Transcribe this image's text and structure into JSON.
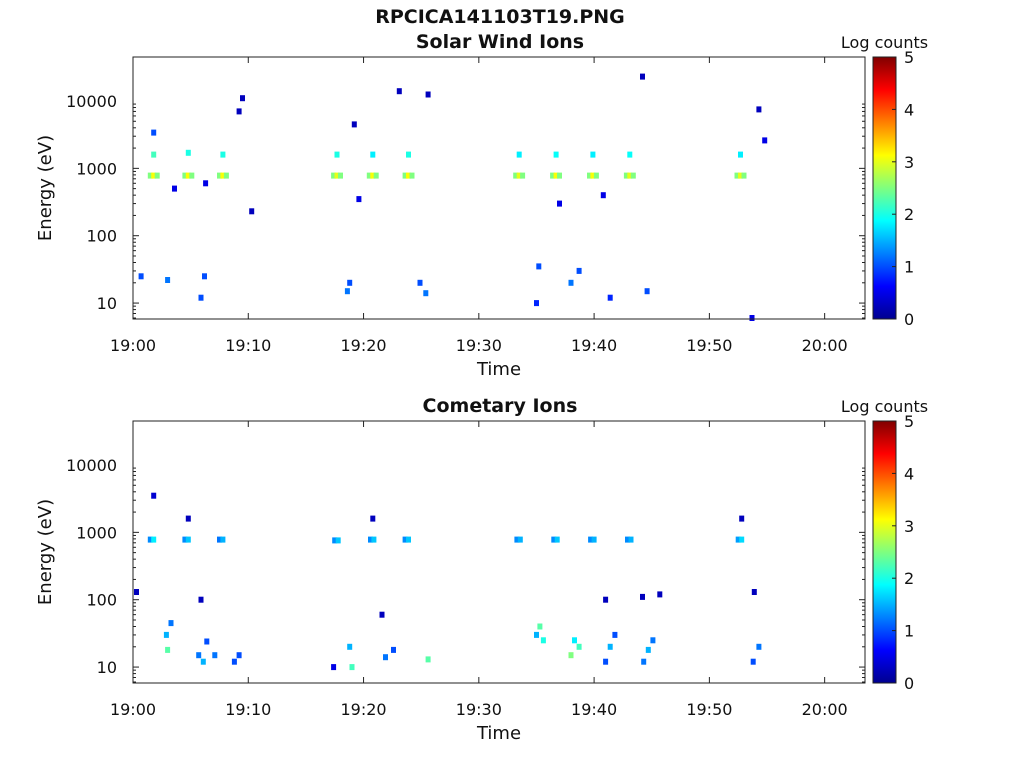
{
  "figure_title": "RPCICA141103T19.PNG",
  "chart_data": [
    {
      "type": "heatmap",
      "title": "Solar Wind Ions",
      "xlabel": "Time",
      "ylabel": "Energy (eV)",
      "x_ticks": [
        "19:00",
        "19:10",
        "19:20",
        "19:30",
        "19:40",
        "19:50",
        "20:00"
      ],
      "x_range_minutes": [
        0,
        63.5
      ],
      "y_ticks": [
        "10",
        "100",
        "1000",
        "10000"
      ],
      "y_scale": "log",
      "y_range_eV": [
        5.8,
        45000
      ],
      "colorbar": {
        "label": "Log counts",
        "ticks": [
          "0",
          "1",
          "2",
          "3",
          "4",
          "5"
        ],
        "range": [
          0,
          5
        ],
        "colormap": "jet"
      },
      "points": [
        {
          "t": 1.5,
          "e": 780,
          "v": 2.5
        },
        {
          "t": 1.8,
          "e": 780,
          "v": 3.1
        },
        {
          "t": 2.1,
          "e": 780,
          "v": 2.5
        },
        {
          "t": 4.5,
          "e": 780,
          "v": 2.5
        },
        {
          "t": 4.8,
          "e": 780,
          "v": 3.1
        },
        {
          "t": 5.1,
          "e": 780,
          "v": 2.5
        },
        {
          "t": 7.5,
          "e": 780,
          "v": 2.5
        },
        {
          "t": 7.8,
          "e": 780,
          "v": 3.1
        },
        {
          "t": 8.1,
          "e": 780,
          "v": 2.5
        },
        {
          "t": 17.4,
          "e": 780,
          "v": 2.5
        },
        {
          "t": 17.7,
          "e": 780,
          "v": 3.0
        },
        {
          "t": 18.0,
          "e": 780,
          "v": 2.5
        },
        {
          "t": 20.5,
          "e": 780,
          "v": 2.5
        },
        {
          "t": 20.8,
          "e": 780,
          "v": 3.1
        },
        {
          "t": 21.1,
          "e": 780,
          "v": 2.5
        },
        {
          "t": 23.6,
          "e": 780,
          "v": 2.5
        },
        {
          "t": 23.9,
          "e": 780,
          "v": 3.1
        },
        {
          "t": 24.2,
          "e": 780,
          "v": 2.5
        },
        {
          "t": 33.2,
          "e": 780,
          "v": 2.5
        },
        {
          "t": 33.5,
          "e": 780,
          "v": 3.0
        },
        {
          "t": 33.8,
          "e": 780,
          "v": 2.5
        },
        {
          "t": 36.4,
          "e": 780,
          "v": 2.5
        },
        {
          "t": 36.7,
          "e": 780,
          "v": 3.1
        },
        {
          "t": 37.0,
          "e": 780,
          "v": 2.5
        },
        {
          "t": 39.6,
          "e": 780,
          "v": 2.5
        },
        {
          "t": 39.9,
          "e": 780,
          "v": 3.1
        },
        {
          "t": 40.2,
          "e": 780,
          "v": 2.5
        },
        {
          "t": 42.8,
          "e": 780,
          "v": 2.5
        },
        {
          "t": 43.1,
          "e": 780,
          "v": 3.0
        },
        {
          "t": 43.4,
          "e": 780,
          "v": 2.5
        },
        {
          "t": 52.4,
          "e": 780,
          "v": 2.5
        },
        {
          "t": 52.7,
          "e": 780,
          "v": 3.0
        },
        {
          "t": 53.0,
          "e": 780,
          "v": 2.5
        },
        {
          "t": 1.8,
          "e": 1600,
          "v": 2.2
        },
        {
          "t": 4.8,
          "e": 1700,
          "v": 2.0
        },
        {
          "t": 7.8,
          "e": 1600,
          "v": 2.0
        },
        {
          "t": 17.7,
          "e": 1600,
          "v": 2.0
        },
        {
          "t": 20.8,
          "e": 1600,
          "v": 1.8
        },
        {
          "t": 23.9,
          "e": 1600,
          "v": 2.0
        },
        {
          "t": 33.5,
          "e": 1600,
          "v": 1.8
        },
        {
          "t": 36.7,
          "e": 1600,
          "v": 1.9
        },
        {
          "t": 39.9,
          "e": 1600,
          "v": 1.8
        },
        {
          "t": 43.1,
          "e": 1600,
          "v": 1.9
        },
        {
          "t": 52.7,
          "e": 1600,
          "v": 1.8
        },
        {
          "t": 1.8,
          "e": 3400,
          "v": 1.0
        },
        {
          "t": 3.6,
          "e": 500,
          "v": 0.5
        },
        {
          "t": 6.3,
          "e": 600,
          "v": 0.5
        },
        {
          "t": 9.2,
          "e": 7000,
          "v": 0.3
        },
        {
          "t": 9.5,
          "e": 11000,
          "v": 0.3
        },
        {
          "t": 10.3,
          "e": 230,
          "v": 0.3
        },
        {
          "t": 19.2,
          "e": 4500,
          "v": 0.3
        },
        {
          "t": 19.6,
          "e": 350,
          "v": 0.5
        },
        {
          "t": 23.1,
          "e": 14000,
          "v": 0.3
        },
        {
          "t": 25.6,
          "e": 12500,
          "v": 0.3
        },
        {
          "t": 37.0,
          "e": 300,
          "v": 0.5
        },
        {
          "t": 40.8,
          "e": 400,
          "v": 0.5
        },
        {
          "t": 44.2,
          "e": 23000,
          "v": 0.3
        },
        {
          "t": 54.3,
          "e": 7500,
          "v": 0.3
        },
        {
          "t": 54.8,
          "e": 2600,
          "v": 0.5
        },
        {
          "t": 0.7,
          "e": 25,
          "v": 1.0
        },
        {
          "t": 3.0,
          "e": 22,
          "v": 1.2
        },
        {
          "t": 6.2,
          "e": 25,
          "v": 1.0
        },
        {
          "t": 5.9,
          "e": 12,
          "v": 1.0
        },
        {
          "t": 18.8,
          "e": 20,
          "v": 1.0
        },
        {
          "t": 18.6,
          "e": 15,
          "v": 1.2
        },
        {
          "t": 24.9,
          "e": 20,
          "v": 1.0
        },
        {
          "t": 25.4,
          "e": 14,
          "v": 1.2
        },
        {
          "t": 35.2,
          "e": 35,
          "v": 1.0
        },
        {
          "t": 35.0,
          "e": 10,
          "v": 0.8
        },
        {
          "t": 38.0,
          "e": 20,
          "v": 1.2
        },
        {
          "t": 38.7,
          "e": 30,
          "v": 1.0
        },
        {
          "t": 41.4,
          "e": 12,
          "v": 0.8
        },
        {
          "t": 44.6,
          "e": 15,
          "v": 1.0
        },
        {
          "t": 53.7,
          "e": 6,
          "v": 0.5
        }
      ]
    },
    {
      "type": "heatmap",
      "title": "Cometary Ions",
      "xlabel": "Time",
      "ylabel": "Energy (eV)",
      "x_ticks": [
        "19:00",
        "19:10",
        "19:20",
        "19:30",
        "19:40",
        "19:50",
        "20:00"
      ],
      "x_range_minutes": [
        0,
        63.5
      ],
      "y_ticks": [
        "10",
        "100",
        "1000",
        "10000"
      ],
      "y_scale": "log",
      "y_range_eV": [
        5.8,
        45000
      ],
      "colorbar": {
        "label": "Log counts",
        "ticks": [
          "0",
          "1",
          "2",
          "3",
          "4",
          "5"
        ],
        "range": [
          0,
          5
        ],
        "colormap": "jet"
      },
      "points": [
        {
          "t": 1.5,
          "e": 780,
          "v": 1.3
        },
        {
          "t": 1.8,
          "e": 780,
          "v": 1.8
        },
        {
          "t": 4.5,
          "e": 780,
          "v": 1.3
        },
        {
          "t": 4.8,
          "e": 780,
          "v": 1.6
        },
        {
          "t": 7.5,
          "e": 780,
          "v": 1.2
        },
        {
          "t": 7.8,
          "e": 780,
          "v": 1.5
        },
        {
          "t": 17.5,
          "e": 760,
          "v": 1.3
        },
        {
          "t": 17.8,
          "e": 760,
          "v": 1.6
        },
        {
          "t": 20.6,
          "e": 780,
          "v": 1.3
        },
        {
          "t": 20.9,
          "e": 780,
          "v": 1.6
        },
        {
          "t": 23.6,
          "e": 780,
          "v": 1.3
        },
        {
          "t": 23.9,
          "e": 780,
          "v": 1.6
        },
        {
          "t": 33.3,
          "e": 780,
          "v": 1.3
        },
        {
          "t": 33.6,
          "e": 780,
          "v": 1.5
        },
        {
          "t": 36.5,
          "e": 780,
          "v": 1.3
        },
        {
          "t": 36.8,
          "e": 780,
          "v": 1.6
        },
        {
          "t": 39.7,
          "e": 780,
          "v": 1.3
        },
        {
          "t": 40.0,
          "e": 780,
          "v": 1.5
        },
        {
          "t": 42.9,
          "e": 780,
          "v": 1.3
        },
        {
          "t": 43.2,
          "e": 780,
          "v": 1.5
        },
        {
          "t": 52.5,
          "e": 780,
          "v": 1.4
        },
        {
          "t": 52.8,
          "e": 780,
          "v": 1.7
        },
        {
          "t": 1.8,
          "e": 3500,
          "v": 0.4
        },
        {
          "t": 4.8,
          "e": 1600,
          "v": 0.3
        },
        {
          "t": 20.8,
          "e": 1600,
          "v": 0.3
        },
        {
          "t": 52.8,
          "e": 1600,
          "v": 0.3
        },
        {
          "t": 0.3,
          "e": 130,
          "v": 0.3
        },
        {
          "t": 5.9,
          "e": 100,
          "v": 0.3
        },
        {
          "t": 21.6,
          "e": 60,
          "v": 0.3
        },
        {
          "t": 41.0,
          "e": 100,
          "v": 0.3
        },
        {
          "t": 44.2,
          "e": 110,
          "v": 0.3
        },
        {
          "t": 45.7,
          "e": 120,
          "v": 0.3
        },
        {
          "t": 53.9,
          "e": 130,
          "v": 0.3
        },
        {
          "t": 2.9,
          "e": 30,
          "v": 1.5
        },
        {
          "t": 3.0,
          "e": 18,
          "v": 2.3
        },
        {
          "t": 3.3,
          "e": 45,
          "v": 1.2
        },
        {
          "t": 5.7,
          "e": 15,
          "v": 1.2
        },
        {
          "t": 6.1,
          "e": 12,
          "v": 1.5
        },
        {
          "t": 6.4,
          "e": 24,
          "v": 1.0
        },
        {
          "t": 7.1,
          "e": 15,
          "v": 1.2
        },
        {
          "t": 8.8,
          "e": 12,
          "v": 1.0
        },
        {
          "t": 9.2,
          "e": 15,
          "v": 1.0
        },
        {
          "t": 17.4,
          "e": 10,
          "v": 0.5
        },
        {
          "t": 18.8,
          "e": 20,
          "v": 1.5
        },
        {
          "t": 19.0,
          "e": 10,
          "v": 2.2
        },
        {
          "t": 21.9,
          "e": 14,
          "v": 1.2
        },
        {
          "t": 22.6,
          "e": 18,
          "v": 1.0
        },
        {
          "t": 25.6,
          "e": 13,
          "v": 2.3
        },
        {
          "t": 35.0,
          "e": 30,
          "v": 1.5
        },
        {
          "t": 35.3,
          "e": 40,
          "v": 2.3
        },
        {
          "t": 35.6,
          "e": 25,
          "v": 2.0
        },
        {
          "t": 38.0,
          "e": 15,
          "v": 2.5
        },
        {
          "t": 38.3,
          "e": 25,
          "v": 1.8
        },
        {
          "t": 38.7,
          "e": 20,
          "v": 2.2
        },
        {
          "t": 41.0,
          "e": 12,
          "v": 1.0
        },
        {
          "t": 41.4,
          "e": 20,
          "v": 1.5
        },
        {
          "t": 41.8,
          "e": 30,
          "v": 1.0
        },
        {
          "t": 44.3,
          "e": 12,
          "v": 1.2
        },
        {
          "t": 44.7,
          "e": 18,
          "v": 1.5
        },
        {
          "t": 45.1,
          "e": 25,
          "v": 1.2
        },
        {
          "t": 53.8,
          "e": 12,
          "v": 1.0
        },
        {
          "t": 54.3,
          "e": 20,
          "v": 1.2
        }
      ]
    }
  ]
}
